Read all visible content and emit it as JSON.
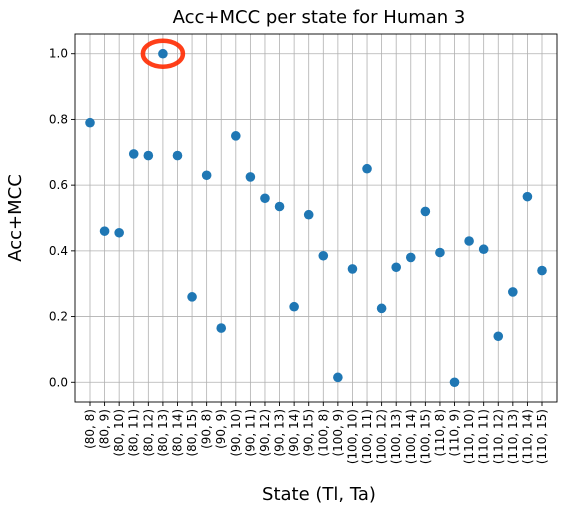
{
  "chart_data": {
    "type": "scatter",
    "title": "Acc+MCC per state for Human 3",
    "xlabel": "State (Tl, Ta)",
    "ylabel": "Acc+MCC",
    "ylim": [
      -0.06,
      1.06
    ],
    "yticks": [
      "0.0",
      "0.2",
      "0.4",
      "0.6",
      "0.8",
      "1.0"
    ],
    "ytick_values": [
      0.0,
      0.2,
      0.4,
      0.6,
      0.8,
      1.0
    ],
    "grid": true,
    "categories": [
      "(80, 8)",
      "(80, 9)",
      "(80, 10)",
      "(80, 11)",
      "(80, 12)",
      "(80, 13)",
      "(80, 14)",
      "(80, 15)",
      "(90, 8)",
      "(90, 9)",
      "(90, 10)",
      "(90, 11)",
      "(90, 12)",
      "(90, 13)",
      "(90, 14)",
      "(90, 15)",
      "(100, 8)",
      "(100, 9)",
      "(100, 10)",
      "(100, 11)",
      "(100, 12)",
      "(100, 13)",
      "(100, 14)",
      "(100, 15)",
      "(110, 8)",
      "(110, 9)",
      "(110, 10)",
      "(110, 11)",
      "(110, 12)",
      "(110, 13)",
      "(110, 14)",
      "(110, 15)"
    ],
    "values": [
      0.79,
      0.46,
      0.455,
      0.695,
      0.69,
      1.0,
      0.69,
      0.26,
      0.63,
      0.165,
      0.75,
      0.625,
      0.56,
      0.535,
      0.23,
      0.51,
      0.385,
      0.015,
      0.345,
      0.65,
      0.225,
      0.35,
      0.38,
      0.52,
      0.395,
      0.0,
      0.43,
      0.405,
      0.14,
      0.275,
      0.565,
      0.34
    ],
    "point_color": "#1f77b4",
    "highlight": {
      "category": "(80, 13)",
      "value": 1.0,
      "color": "#ff2a00"
    }
  }
}
